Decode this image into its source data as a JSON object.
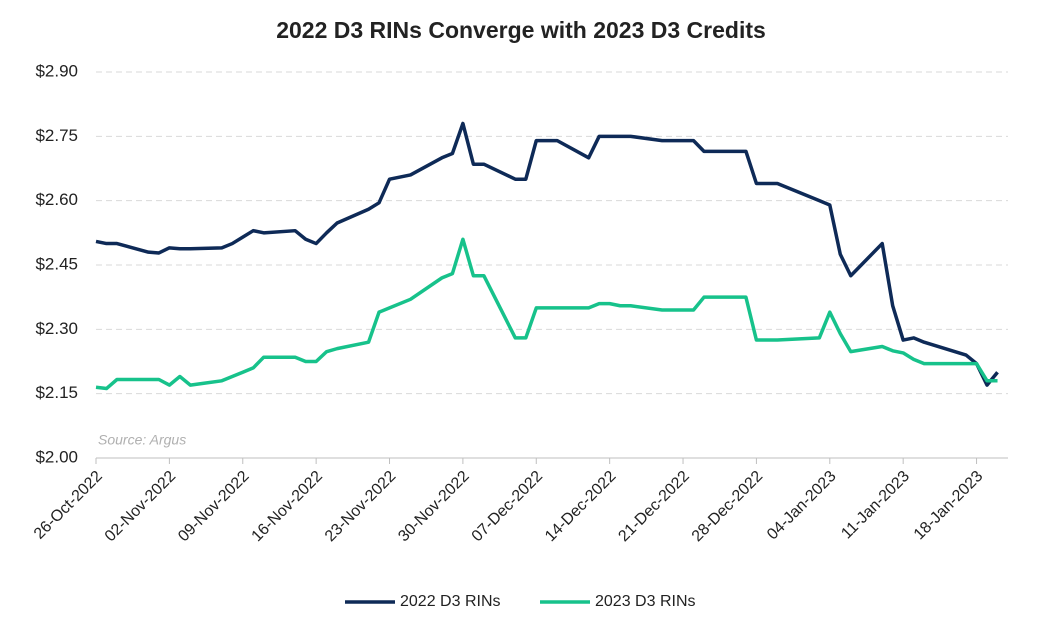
{
  "chart_data": {
    "type": "line",
    "title": "2022 D3 RINs Converge with 2023 D3 Credits",
    "annotation": "Source: Argus",
    "x": [
      "2022-10-26",
      "2022-10-27",
      "2022-10-28",
      "2022-10-31",
      "2022-11-01",
      "2022-11-02",
      "2022-11-03",
      "2022-11-04",
      "2022-11-07",
      "2022-11-08",
      "2022-11-09",
      "2022-11-10",
      "2022-11-11",
      "2022-11-14",
      "2022-11-15",
      "2022-11-16",
      "2022-11-17",
      "2022-11-18",
      "2022-11-21",
      "2022-11-22",
      "2022-11-23",
      "2022-11-25",
      "2022-11-28",
      "2022-11-29",
      "2022-11-30",
      "2022-12-01",
      "2022-12-02",
      "2022-12-05",
      "2022-12-06",
      "2022-12-07",
      "2022-12-08",
      "2022-12-09",
      "2022-12-12",
      "2022-12-13",
      "2022-12-14",
      "2022-12-15",
      "2022-12-16",
      "2022-12-19",
      "2022-12-20",
      "2022-12-21",
      "2022-12-22",
      "2022-12-23",
      "2022-12-27",
      "2022-12-28",
      "2022-12-29",
      "2022-12-30",
      "2023-01-03",
      "2023-01-04",
      "2023-01-05",
      "2023-01-06",
      "2023-01-09",
      "2023-01-10",
      "2023-01-11",
      "2023-01-12",
      "2023-01-13",
      "2023-01-17",
      "2023-01-18",
      "2023-01-19",
      "2023-01-20"
    ],
    "series": [
      {
        "name": "2022 D3 RINs",
        "color": "#0e2a57",
        "values": [
          2.505,
          2.5,
          2.5,
          2.48,
          2.478,
          2.49,
          2.488,
          2.488,
          2.49,
          2.5,
          2.515,
          2.53,
          2.525,
          2.53,
          2.51,
          2.5,
          2.525,
          2.548,
          2.58,
          2.595,
          2.65,
          2.66,
          2.7,
          2.71,
          2.78,
          2.685,
          2.685,
          2.65,
          2.65,
          2.74,
          2.74,
          2.74,
          2.7,
          2.75,
          2.75,
          2.75,
          2.75,
          2.74,
          2.74,
          2.74,
          2.74,
          2.715,
          2.715,
          2.64,
          2.64,
          2.64,
          2.6,
          2.59,
          2.475,
          2.425,
          2.5,
          2.355,
          2.275,
          2.28,
          2.27,
          2.24,
          2.22,
          2.17,
          2.2
        ]
      },
      {
        "name": "2023 D3 RINs",
        "color": "#17c28b",
        "values": [
          2.165,
          2.162,
          2.183,
          2.183,
          2.183,
          2.17,
          2.19,
          2.17,
          2.18,
          2.19,
          2.2,
          2.21,
          2.235,
          2.235,
          2.225,
          2.225,
          2.248,
          2.255,
          2.27,
          2.34,
          2.35,
          2.37,
          2.42,
          2.43,
          2.51,
          2.425,
          2.425,
          2.28,
          2.28,
          2.35,
          2.35,
          2.35,
          2.35,
          2.36,
          2.36,
          2.355,
          2.355,
          2.345,
          2.345,
          2.345,
          2.345,
          2.375,
          2.375,
          2.275,
          2.275,
          2.275,
          2.28,
          2.34,
          2.29,
          2.248,
          2.26,
          2.25,
          2.245,
          2.23,
          2.22,
          2.22,
          2.22,
          2.18,
          2.18
        ]
      }
    ],
    "xlim": [
      "2022-10-26",
      "2023-01-21"
    ],
    "xticks": [
      {
        "value": "2022-10-26",
        "label": "26-Oct-2022"
      },
      {
        "value": "2022-11-02",
        "label": "02-Nov-2022"
      },
      {
        "value": "2022-11-09",
        "label": "09-Nov-2022"
      },
      {
        "value": "2022-11-16",
        "label": "16-Nov-2022"
      },
      {
        "value": "2022-11-23",
        "label": "23-Nov-2022"
      },
      {
        "value": "2022-11-30",
        "label": "30-Nov-2022"
      },
      {
        "value": "2022-12-07",
        "label": "07-Dec-2022"
      },
      {
        "value": "2022-12-14",
        "label": "14-Dec-2022"
      },
      {
        "value": "2022-12-21",
        "label": "21-Dec-2022"
      },
      {
        "value": "2022-12-28",
        "label": "28-Dec-2022"
      },
      {
        "value": "2023-01-04",
        "label": "04-Jan-2023"
      },
      {
        "value": "2023-01-11",
        "label": "11-Jan-2023"
      },
      {
        "value": "2023-01-18",
        "label": "18-Jan-2023"
      }
    ],
    "ylim": [
      2.0,
      2.9
    ],
    "yticks": [
      {
        "value": 2.0,
        "label": "$2.00"
      },
      {
        "value": 2.15,
        "label": "$2.15"
      },
      {
        "value": 2.3,
        "label": "$2.30"
      },
      {
        "value": 2.45,
        "label": "$2.45"
      },
      {
        "value": 2.6,
        "label": "$2.60"
      },
      {
        "value": 2.75,
        "label": "$2.75"
      },
      {
        "value": 2.9,
        "label": "$2.90"
      }
    ],
    "grid": true,
    "legend": "bottom"
  }
}
